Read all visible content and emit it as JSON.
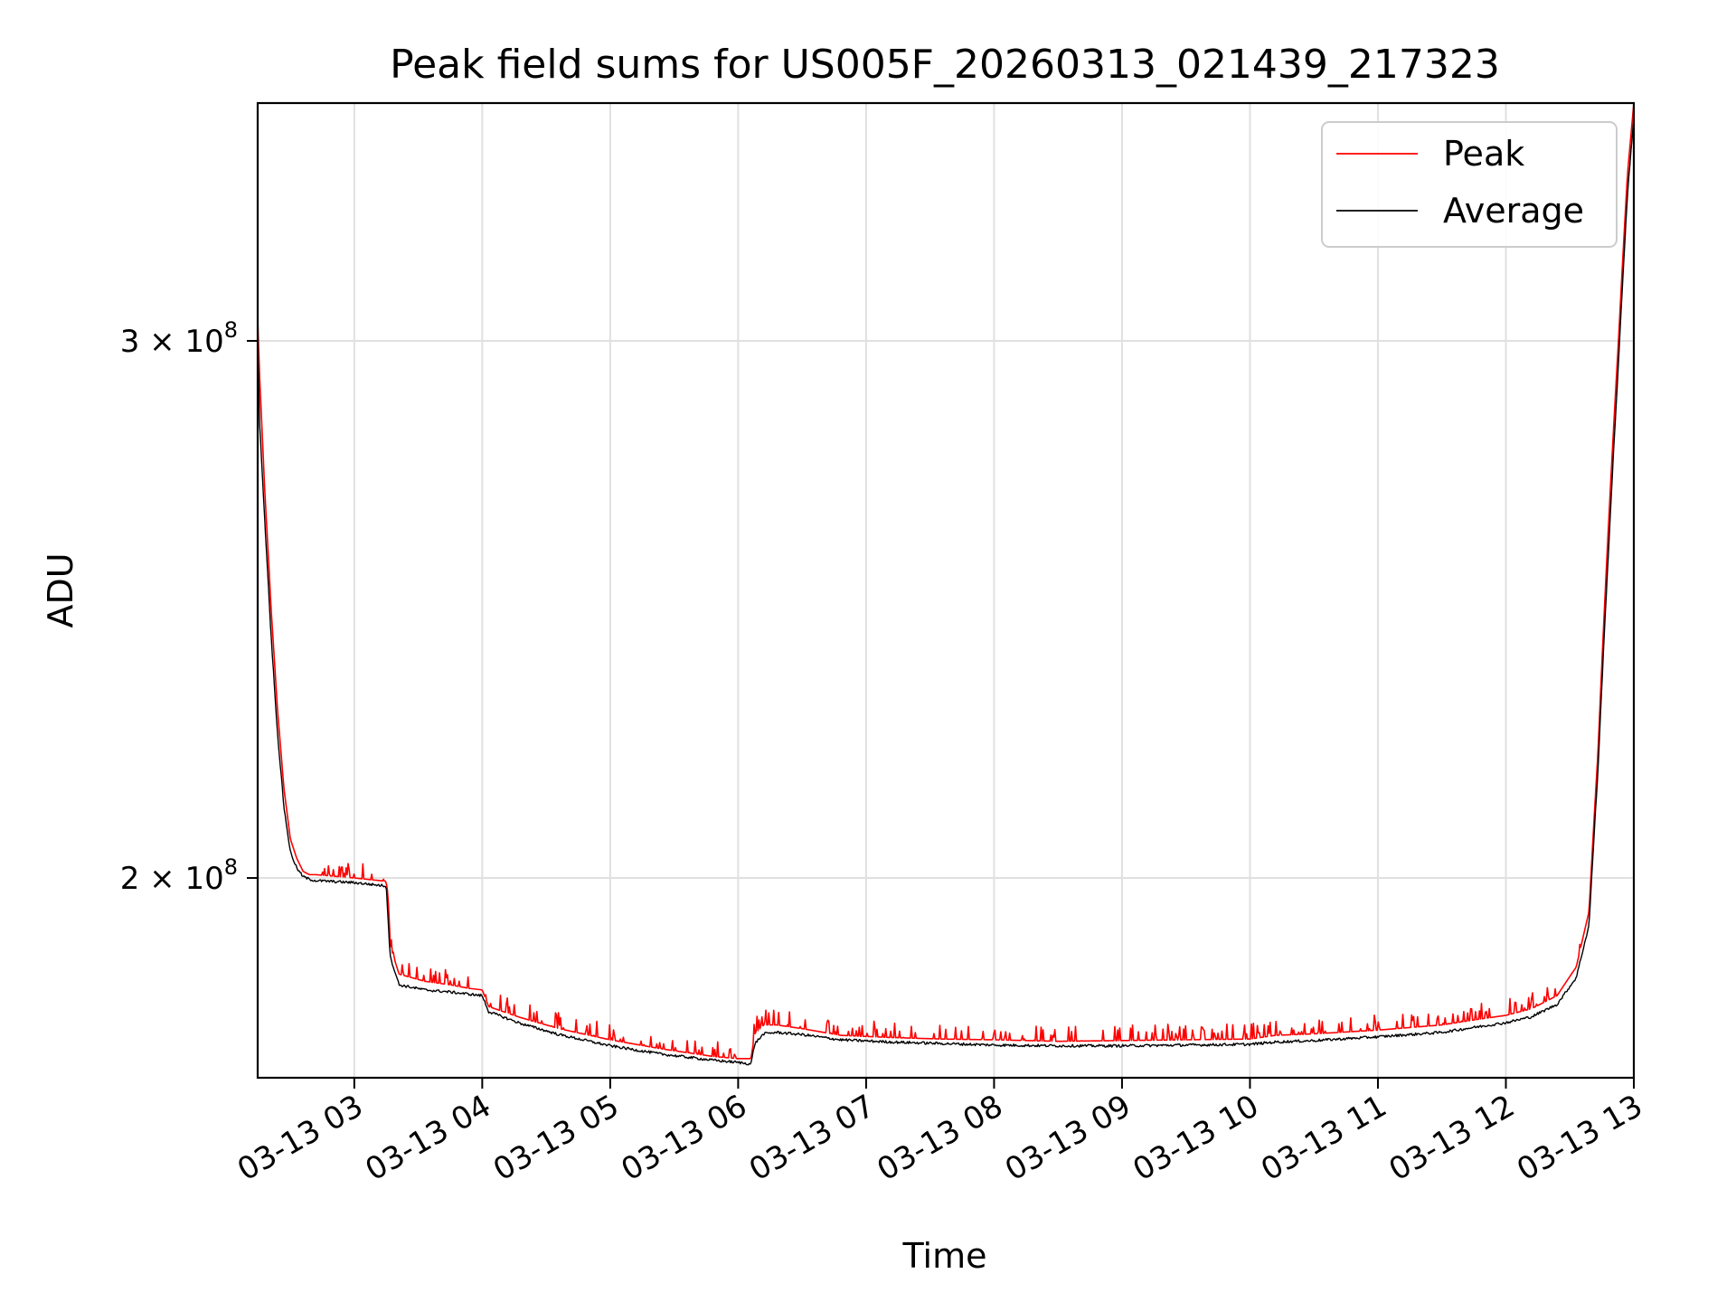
{
  "chart_data": {
    "type": "line",
    "title": "Peak field sums for US005F_20260313_021439_217323",
    "xlabel": "Time",
    "ylabel": "ADU",
    "yscale": "log",
    "grid": true,
    "legend_position": "top-right",
    "x_unit": "hours since 03-13 00:00",
    "xlim": [
      2.245,
      13.0
    ],
    "ylim": [
      172000000,
      359000000
    ],
    "x_ticks": [
      3,
      4,
      5,
      6,
      7,
      8,
      9,
      10,
      11,
      12,
      13
    ],
    "x_tick_labels": [
      "03-13 03",
      "03-13 04",
      "03-13 05",
      "03-13 06",
      "03-13 07",
      "03-13 08",
      "03-13 09",
      "03-13 10",
      "03-13 11",
      "03-13 12",
      "03-13 13"
    ],
    "y_ticks": [
      200000000,
      300000000
    ],
    "y_tick_labels": [
      {
        "mantissa": "2",
        "exp": "8"
      },
      {
        "mantissa": "3",
        "exp": "8"
      }
    ],
    "series": [
      {
        "name": "Peak",
        "color": "#ff0000",
        "x": [
          2.245,
          2.26,
          2.3,
          2.35,
          2.4,
          2.45,
          2.5,
          2.55,
          2.6,
          2.65,
          2.7,
          3.0,
          3.25,
          3.28,
          3.35,
          3.55,
          3.75,
          3.9,
          4.0,
          4.05,
          4.3,
          4.6,
          5.0,
          5.4,
          5.8,
          6.0,
          6.1,
          6.13,
          6.2,
          6.3,
          6.5,
          6.8,
          7.2,
          7.6,
          8.0,
          8.5,
          9.0,
          9.5,
          10.0,
          10.2,
          10.5,
          11.0,
          11.5,
          11.8,
          12.0,
          12.2,
          12.4,
          12.55,
          12.65,
          12.72,
          12.8,
          12.88,
          12.95,
          13.0
        ],
        "values": [
          305000000,
          292000000,
          268000000,
          245000000,
          227000000,
          214000000,
          206000000,
          203000000,
          201000000,
          200500000,
          200500000,
          200000000,
          199500000,
          190000000,
          186000000,
          185000000,
          184500000,
          184000000,
          183800000,
          181500000,
          180000000,
          178500000,
          177000000,
          175800000,
          174800000,
          174500000,
          174500000,
          177800000,
          179000000,
          179000000,
          178500000,
          177600000,
          177300000,
          177100000,
          177000000,
          176800000,
          176900000,
          177000000,
          177100000,
          177600000,
          177800000,
          178300000,
          179000000,
          179800000,
          180300000,
          181200000,
          183000000,
          187000000,
          195000000,
          220000000,
          260000000,
          300000000,
          340000000,
          359000000
        ]
      },
      {
        "name": "Average",
        "color": "#000000",
        "x": [
          2.245,
          2.26,
          2.3,
          2.35,
          2.4,
          2.45,
          2.5,
          2.55,
          2.6,
          2.65,
          2.7,
          3.0,
          3.25,
          3.28,
          3.35,
          3.55,
          3.75,
          3.9,
          4.0,
          4.05,
          4.3,
          4.6,
          5.0,
          5.4,
          5.8,
          6.0,
          6.1,
          6.13,
          6.2,
          6.3,
          6.5,
          6.8,
          7.2,
          7.6,
          8.0,
          8.5,
          9.0,
          9.5,
          10.0,
          10.2,
          10.5,
          11.0,
          11.5,
          11.8,
          12.0,
          12.2,
          12.4,
          12.55,
          12.65,
          12.72,
          12.8,
          12.88,
          12.95,
          13.0
        ],
        "values": [
          300000000,
          282000000,
          262000000,
          240000000,
          223000000,
          211000000,
          204000000,
          201500000,
          200200000,
          199800000,
          199600000,
          199300000,
          198800000,
          188500000,
          184500000,
          183800000,
          183500000,
          183200000,
          183000000,
          180800000,
          179200000,
          177700000,
          176200000,
          175100000,
          174300000,
          174000000,
          173800000,
          176500000,
          177800000,
          178000000,
          177700000,
          177000000,
          176700000,
          176500000,
          176300000,
          176200000,
          176200000,
          176300000,
          176400000,
          176700000,
          176900000,
          177400000,
          178000000,
          178800000,
          179300000,
          180100000,
          181800000,
          185500000,
          193000000,
          217000000,
          255000000,
          295000000,
          335000000,
          355000000
        ]
      }
    ]
  }
}
